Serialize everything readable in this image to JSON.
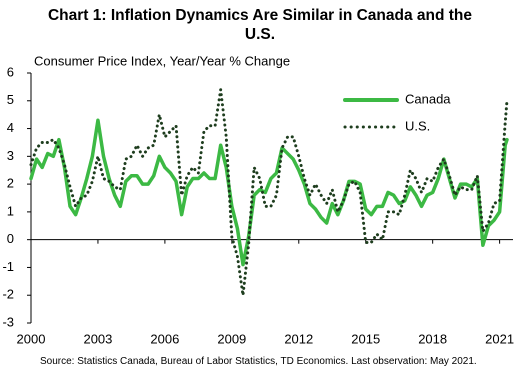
{
  "chart_data": {
    "type": "line",
    "title": "Chart 1: Inflation Dynamics Are Similar in Canada and the U.S.",
    "y_label": "Consumer Price Index, Year/Year % Change",
    "source": "Source:  Statistics Canada,  Bureau of Labor Statistics,  TD Economics.  Last observation: May 2021.",
    "x": [
      2000,
      2000.25,
      2000.5,
      2000.75,
      2001,
      2001.25,
      2001.5,
      2001.75,
      2002,
      2002.25,
      2002.5,
      2002.75,
      2003,
      2003.25,
      2003.5,
      2003.75,
      2004,
      2004.25,
      2004.5,
      2004.75,
      2005,
      2005.25,
      2005.5,
      2005.75,
      2006,
      2006.25,
      2006.5,
      2006.75,
      2007,
      2007.25,
      2007.5,
      2007.75,
      2008,
      2008.25,
      2008.5,
      2008.75,
      2009,
      2009.25,
      2009.5,
      2009.75,
      2010,
      2010.25,
      2010.5,
      2010.75,
      2011,
      2011.25,
      2011.5,
      2011.75,
      2012,
      2012.25,
      2012.5,
      2012.75,
      2013,
      2013.25,
      2013.5,
      2013.75,
      2014,
      2014.25,
      2014.5,
      2014.75,
      2015,
      2015.25,
      2015.5,
      2015.75,
      2016,
      2016.25,
      2016.5,
      2016.75,
      2017,
      2017.25,
      2017.5,
      2017.75,
      2018,
      2018.25,
      2018.5,
      2018.75,
      2019,
      2019.25,
      2019.5,
      2019.75,
      2020,
      2020.25,
      2020.5,
      2020.75,
      2021,
      2021.25,
      2021.33
    ],
    "series": [
      {
        "name": "Canada",
        "color": "#3cb944",
        "style": "solid",
        "values": [
          2.2,
          2.9,
          2.6,
          3.1,
          3.0,
          3.6,
          2.6,
          1.2,
          0.9,
          1.5,
          2.2,
          3.0,
          4.3,
          3.0,
          2.2,
          1.6,
          1.2,
          2.1,
          2.3,
          2.3,
          2.0,
          2.0,
          2.3,
          3.0,
          2.6,
          2.4,
          2.1,
          0.9,
          1.9,
          2.2,
          2.2,
          2.4,
          2.2,
          2.2,
          3.4,
          2.6,
          1.2,
          0.4,
          -0.9,
          0.1,
          1.6,
          1.8,
          1.7,
          2.2,
          2.4,
          3.3,
          3.1,
          2.9,
          2.5,
          2.0,
          1.3,
          1.1,
          0.8,
          0.6,
          1.3,
          0.9,
          1.4,
          2.1,
          2.1,
          2.0,
          1.1,
          0.9,
          1.2,
          1.2,
          1.7,
          1.6,
          1.3,
          1.4,
          1.9,
          1.6,
          1.2,
          1.6,
          1.7,
          2.2,
          2.9,
          2.2,
          1.5,
          2.0,
          2.0,
          1.9,
          2.2,
          -0.2,
          0.5,
          0.7,
          1.0,
          3.4,
          3.6
        ]
      },
      {
        "name": "U.S.",
        "color": "#1e3d1e",
        "style": "dotted",
        "values": [
          2.7,
          3.3,
          3.5,
          3.5,
          3.6,
          3.3,
          2.7,
          1.9,
          1.2,
          1.5,
          1.6,
          2.1,
          3.0,
          2.2,
          2.1,
          1.9,
          1.8,
          2.9,
          3.0,
          3.4,
          3.0,
          3.3,
          3.4,
          4.5,
          3.7,
          3.9,
          4.1,
          1.6,
          2.3,
          2.6,
          2.4,
          3.9,
          4.1,
          4.1,
          5.4,
          3.7,
          0.1,
          -0.6,
          -2.0,
          -0.2,
          2.6,
          2.2,
          1.2,
          1.2,
          1.6,
          3.3,
          3.7,
          3.7,
          3.0,
          2.2,
          1.6,
          2.0,
          1.6,
          1.3,
          1.8,
          1.0,
          1.4,
          2.0,
          2.1,
          1.7,
          -0.1,
          -0.1,
          0.2,
          0.0,
          1.0,
          1.0,
          0.9,
          1.6,
          2.5,
          2.2,
          1.7,
          2.2,
          2.1,
          2.6,
          2.9,
          2.3,
          1.6,
          1.9,
          1.8,
          1.8,
          2.3,
          0.3,
          0.6,
          1.3,
          1.4,
          4.2,
          5.0
        ]
      }
    ],
    "xlim": [
      2000,
      2021.6
    ],
    "xticks": [
      2000,
      2003,
      2006,
      2009,
      2012,
      2015,
      2018,
      2021
    ],
    "ylim": [
      -3,
      6
    ],
    "yticks": [
      -3,
      -2,
      -1,
      0,
      1,
      2,
      3,
      4,
      5,
      6
    ],
    "legend": "top-right"
  }
}
